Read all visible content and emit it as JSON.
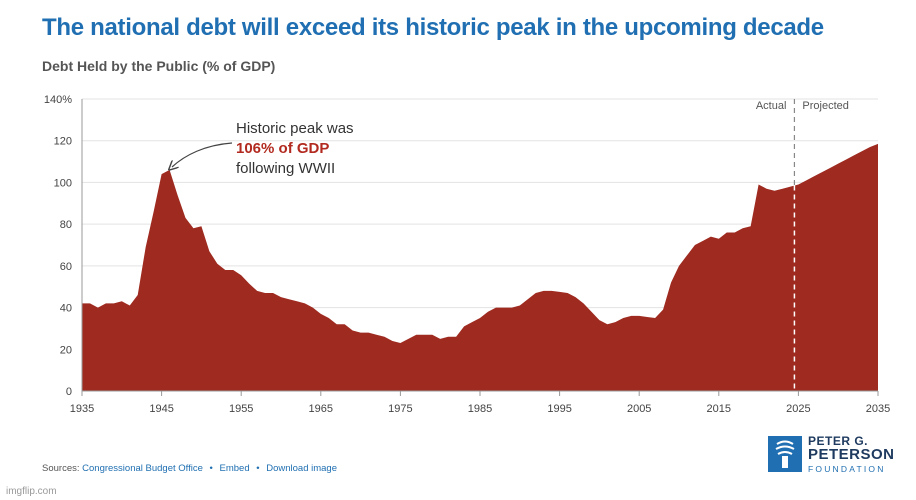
{
  "title": "The national debt will exceed its historic peak in the upcoming decade",
  "subtitle": "Debt Held by the Public (% of GDP)",
  "annotation": {
    "line1": "Historic peak was",
    "line2": "106% of GDP",
    "line3": "following WWII"
  },
  "regions": {
    "left": "Actual",
    "right": "Projected"
  },
  "sources": {
    "prefix": "Sources:",
    "source_link": "Congressional Budget Office",
    "embed_link": "Embed",
    "download_link": "Download image"
  },
  "logo": {
    "line1": "PETER G.",
    "line2": "PETERSON",
    "line3": "FOUNDATION"
  },
  "watermark": "imgflip.com",
  "colors": {
    "area": "#9e2a20",
    "title": "#1f6fb2",
    "highlight": "#b22a1f"
  },
  "chart_data": {
    "type": "area",
    "title": "The national debt will exceed its historic peak in the upcoming decade",
    "ylabel": "Debt Held by the Public (% of GDP)",
    "xlim": [
      1935,
      2035
    ],
    "ylim": [
      0,
      140
    ],
    "x_ticks": [
      1935,
      1945,
      1955,
      1965,
      1975,
      1985,
      1995,
      2005,
      2015,
      2025,
      2035
    ],
    "y_ticks": [
      0,
      20,
      40,
      60,
      80,
      100,
      120,
      140
    ],
    "y_tick_labels": [
      "0",
      "20",
      "40",
      "60",
      "80",
      "100",
      "120",
      "140%"
    ],
    "grid": true,
    "actual_projected_split": 2024.5,
    "x": [
      1935,
      1936,
      1937,
      1938,
      1939,
      1940,
      1941,
      1942,
      1943,
      1944,
      1945,
      1946,
      1947,
      1948,
      1949,
      1950,
      1951,
      1952,
      1953,
      1954,
      1955,
      1956,
      1957,
      1958,
      1959,
      1960,
      1961,
      1962,
      1963,
      1964,
      1965,
      1966,
      1967,
      1968,
      1969,
      1970,
      1971,
      1972,
      1973,
      1974,
      1975,
      1976,
      1977,
      1978,
      1979,
      1980,
      1981,
      1982,
      1983,
      1984,
      1985,
      1986,
      1987,
      1988,
      1989,
      1990,
      1991,
      1992,
      1993,
      1994,
      1995,
      1996,
      1997,
      1998,
      1999,
      2000,
      2001,
      2002,
      2003,
      2004,
      2005,
      2006,
      2007,
      2008,
      2009,
      2010,
      2011,
      2012,
      2013,
      2014,
      2015,
      2016,
      2017,
      2018,
      2019,
      2020,
      2021,
      2022,
      2023,
      2024,
      2025,
      2026,
      2027,
      2028,
      2029,
      2030,
      2031,
      2032,
      2033,
      2034,
      2035
    ],
    "series": [
      {
        "values": [
          42,
          42,
          40,
          42,
          42,
          43,
          41,
          46,
          69,
          86,
          104,
          106,
          94,
          83,
          78,
          79,
          67,
          61,
          58,
          58,
          55.5,
          51.5,
          48,
          47,
          47,
          45,
          44,
          43,
          42,
          40,
          37,
          35,
          32,
          32,
          29,
          28,
          28,
          27,
          26,
          24,
          23,
          25,
          27,
          27,
          27,
          25,
          26,
          26,
          31,
          33,
          35,
          38,
          40,
          40,
          40,
          41,
          44,
          47,
          48,
          48,
          47.5,
          47,
          45,
          42,
          38,
          34,
          32,
          33,
          35,
          36,
          36,
          35.5,
          35,
          39,
          52,
          60,
          65,
          70,
          72,
          74,
          73,
          76,
          76,
          78,
          79,
          99,
          97,
          96,
          97,
          98,
          99,
          101,
          103,
          105,
          107,
          109,
          111,
          113,
          115,
          117,
          118.5
        ]
      }
    ]
  }
}
